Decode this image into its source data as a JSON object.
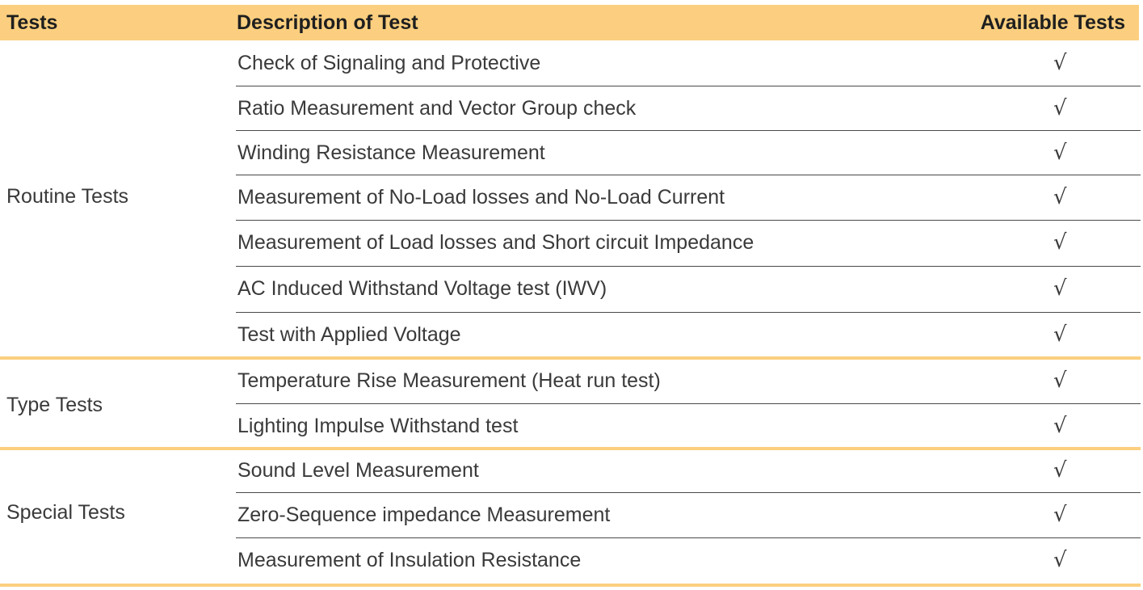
{
  "header": {
    "tests": "Tests",
    "description": "Description of Test",
    "available": "Available Tests"
  },
  "groups": [
    {
      "label": "Routine Tests",
      "rows": [
        {
          "description": "Check of Signaling and Protective",
          "available": "√"
        },
        {
          "description": "Ratio Measurement and Vector Group check",
          "available": "√"
        },
        {
          "description": "Winding Resistance Measurement",
          "available": "√"
        },
        {
          "description": "Measurement of No-Load losses and No-Load Current",
          "available": "√"
        },
        {
          "description": "Measurement of Load losses and Short circuit Impedance",
          "available": "√"
        },
        {
          "description": "AC Induced Withstand Voltage test (IWV)",
          "available": "√"
        },
        {
          "description": "Test with Applied Voltage",
          "available": "√"
        }
      ]
    },
    {
      "label": "Type Tests",
      "rows": [
        {
          "description": "Temperature Rise Measurement (Heat run test)",
          "available": "√"
        },
        {
          "description": "Lighting Impulse Withstand test",
          "available": "√"
        }
      ]
    },
    {
      "label": "Special Tests",
      "rows": [
        {
          "description": "Sound Level Measurement",
          "available": "√"
        },
        {
          "description": "Zero-Sequence impedance Measurement",
          "available": "√"
        },
        {
          "description": "Measurement of Insulation Resistance",
          "available": "√"
        }
      ]
    }
  ],
  "colors": {
    "header_bg": "#fbcf7f",
    "group_divider": "#fbcf7f",
    "row_divider": "#4a4a4a",
    "text": "#3a3a3a"
  }
}
